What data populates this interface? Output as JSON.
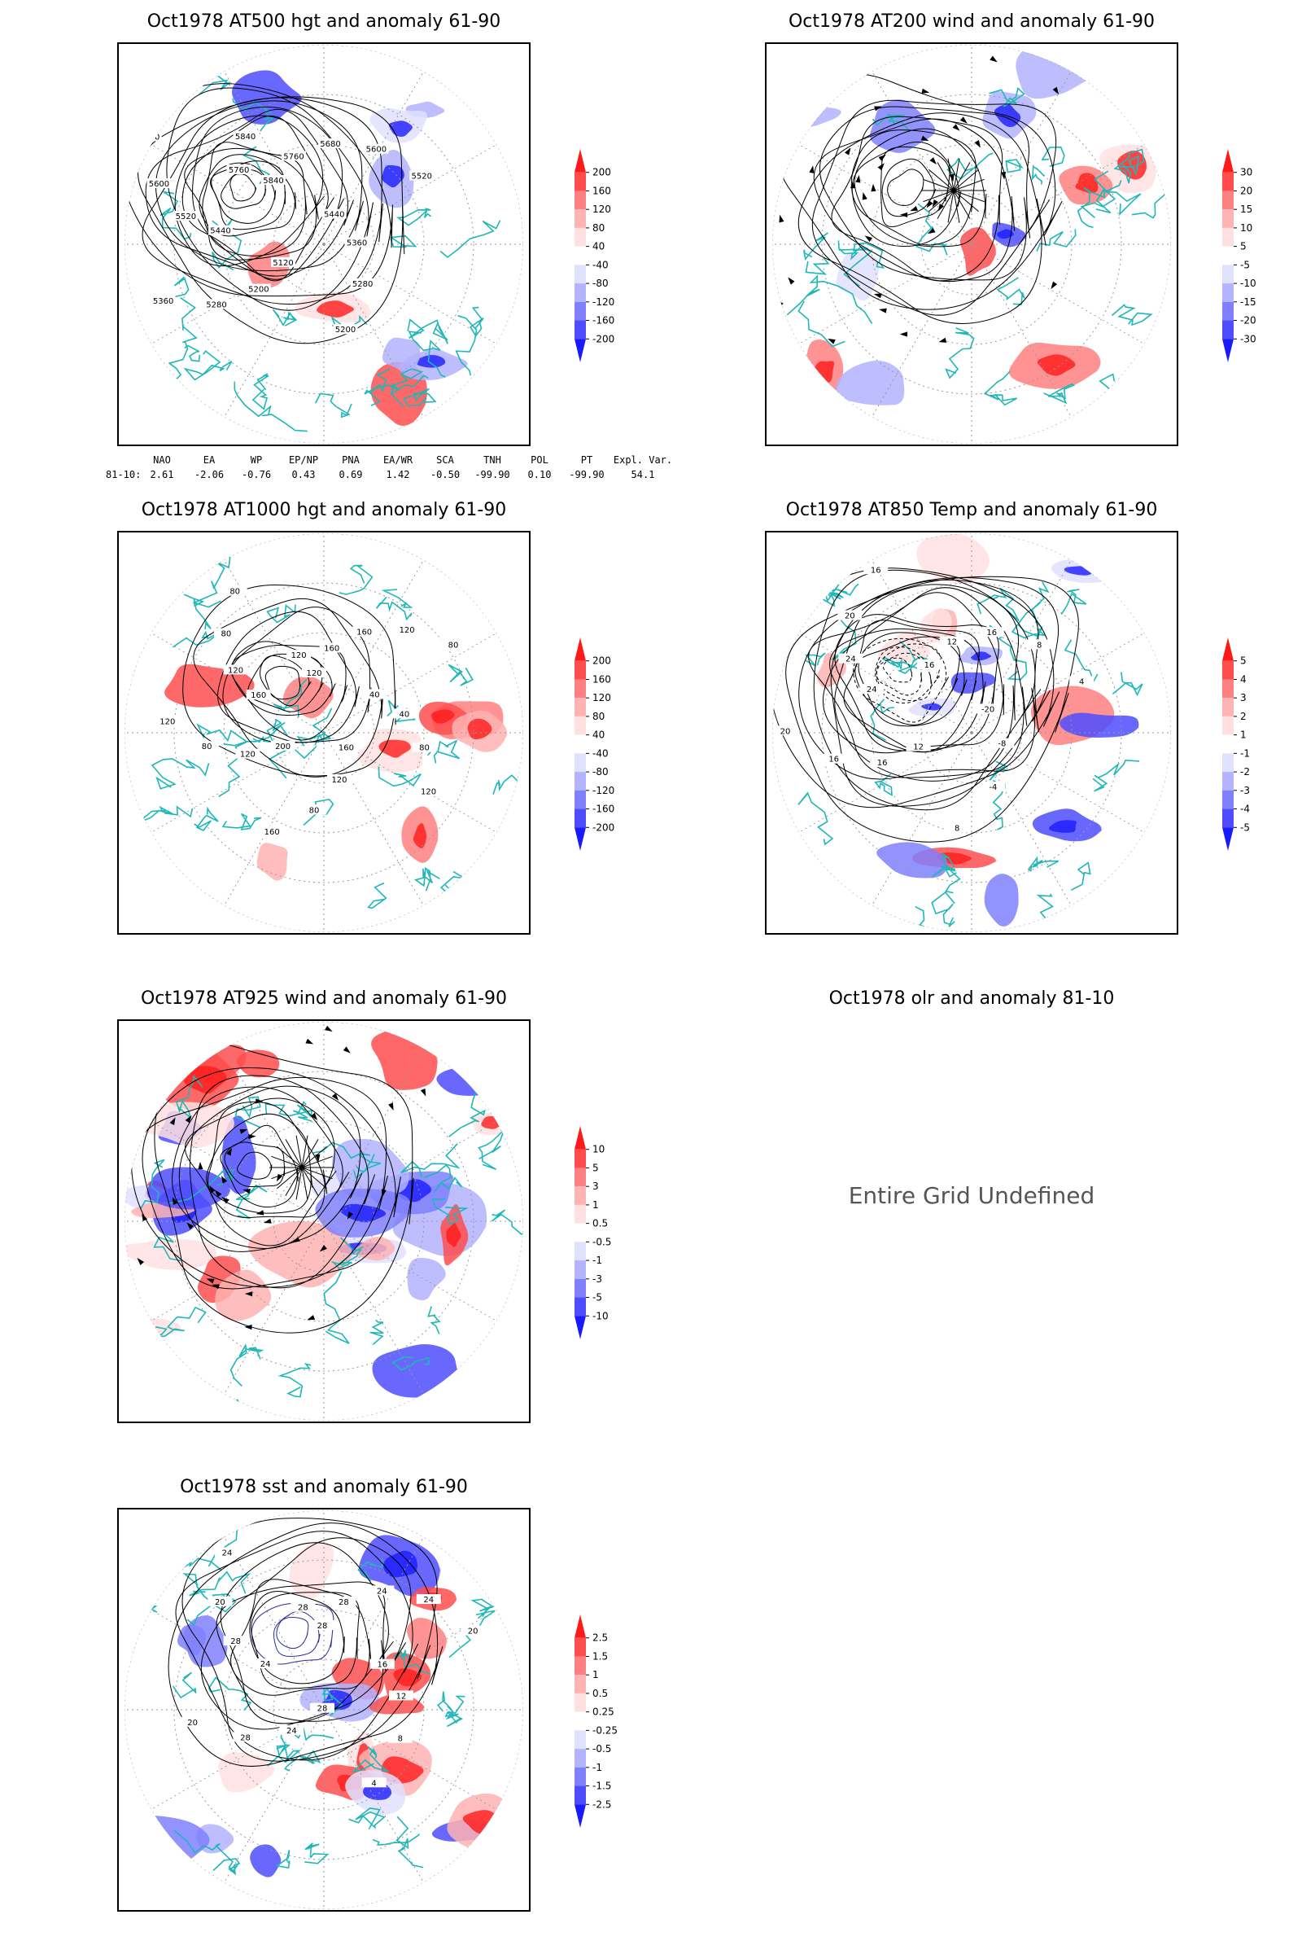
{
  "panels": [
    {
      "id": "p500",
      "title": "Oct1978 AT500 hgt and anomaly 61-90",
      "colorbar": [
        "200",
        "160",
        "120",
        "80",
        "40",
        "-40",
        "-80",
        "-120",
        "-160",
        "-200"
      ],
      "contour_labels": [
        "5840",
        "5760",
        "5680",
        "5600",
        "5520",
        "5440",
        "5360",
        "5280",
        "5200",
        "5120",
        "5200",
        "5280",
        "5360",
        "5440",
        "5520",
        "5600",
        "5680",
        "5760",
        "5840"
      ]
    },
    {
      "id": "p200",
      "title": "Oct1978 AT200 wind and anomaly 61-90",
      "colorbar": [
        "30",
        "20",
        "15",
        "10",
        "5",
        "-5",
        "-10",
        "-15",
        "-20",
        "-30"
      ],
      "contour_labels": []
    },
    {
      "id": "p1000",
      "title": "Oct1978 AT1000 hgt and anomaly 61-90",
      "colorbar": [
        "200",
        "160",
        "120",
        "80",
        "40",
        "-40",
        "-80",
        "-120",
        "-160",
        "-200"
      ],
      "contour_labels": [
        "120",
        "160",
        "160",
        "120",
        "80",
        "40",
        "40",
        "80",
        "120",
        "160",
        "120",
        "80",
        "160",
        "200",
        "120",
        "80",
        "120",
        "160",
        "120",
        "80",
        "80",
        "120"
      ]
    },
    {
      "id": "p850",
      "title": "Oct1978 AT850 Temp and anomaly 61-90",
      "colorbar": [
        "5",
        "4",
        "3",
        "2",
        "1",
        "-1",
        "-2",
        "-3",
        "-4",
        "-5"
      ],
      "contour_labels": [
        "16",
        "12",
        "16",
        "8",
        "4",
        "-20",
        "-8",
        "-4",
        "8",
        "12",
        "16",
        "16",
        "20",
        "24",
        "24",
        "20",
        "16"
      ]
    },
    {
      "id": "p925",
      "title": "Oct1978 AT925 wind and anomaly 61-90",
      "colorbar": [
        "10",
        "5",
        "3",
        "1",
        "0.5",
        "-0.5",
        "-1",
        "-3",
        "-5",
        "-10"
      ],
      "contour_labels": []
    },
    {
      "id": "pSST",
      "title": "Oct1978 sst and anomaly 61-90",
      "colorbar": [
        "2.5",
        "1.5",
        "1",
        "0.5",
        "0.25",
        "-0.25",
        "-0.5",
        "-1",
        "-1.5",
        "-2.5"
      ],
      "contour_labels": [
        "28",
        "28",
        "24",
        "24",
        "20",
        "16",
        "12",
        "8",
        "4",
        "28",
        "24",
        "28",
        "20",
        "24",
        "28",
        "20",
        "24",
        "28"
      ]
    }
  ],
  "olr_panel": {
    "title": "Oct1978 olr and anomaly 81-10",
    "message": "Entire Grid Undefined"
  },
  "index_table": {
    "headers": [
      "NAO",
      "EA",
      "WP",
      "EP/NP",
      "PNA",
      "EA/WR",
      "SCA",
      "TNH",
      "POL",
      "PT",
      "Expl. Var."
    ],
    "row_label": "81-10:",
    "values": [
      "2.61",
      "-2.06",
      "-0.76",
      "0.43",
      "0.69",
      "1.42",
      "-0.50",
      "-99.90",
      "0.10",
      "-99.90",
      "54.1"
    ]
  },
  "colors": {
    "coast": "#1fb7b7",
    "contour": "#000000",
    "grid": "#999999",
    "red_scale": [
      "#ff1a1a",
      "#ff4d4d",
      "#ff8080",
      "#ffb3b3",
      "#ffe0e0"
    ],
    "blue_scale": [
      "#e0e0ff",
      "#b3b3ff",
      "#8080ff",
      "#4d4dff",
      "#1a1aff"
    ]
  }
}
